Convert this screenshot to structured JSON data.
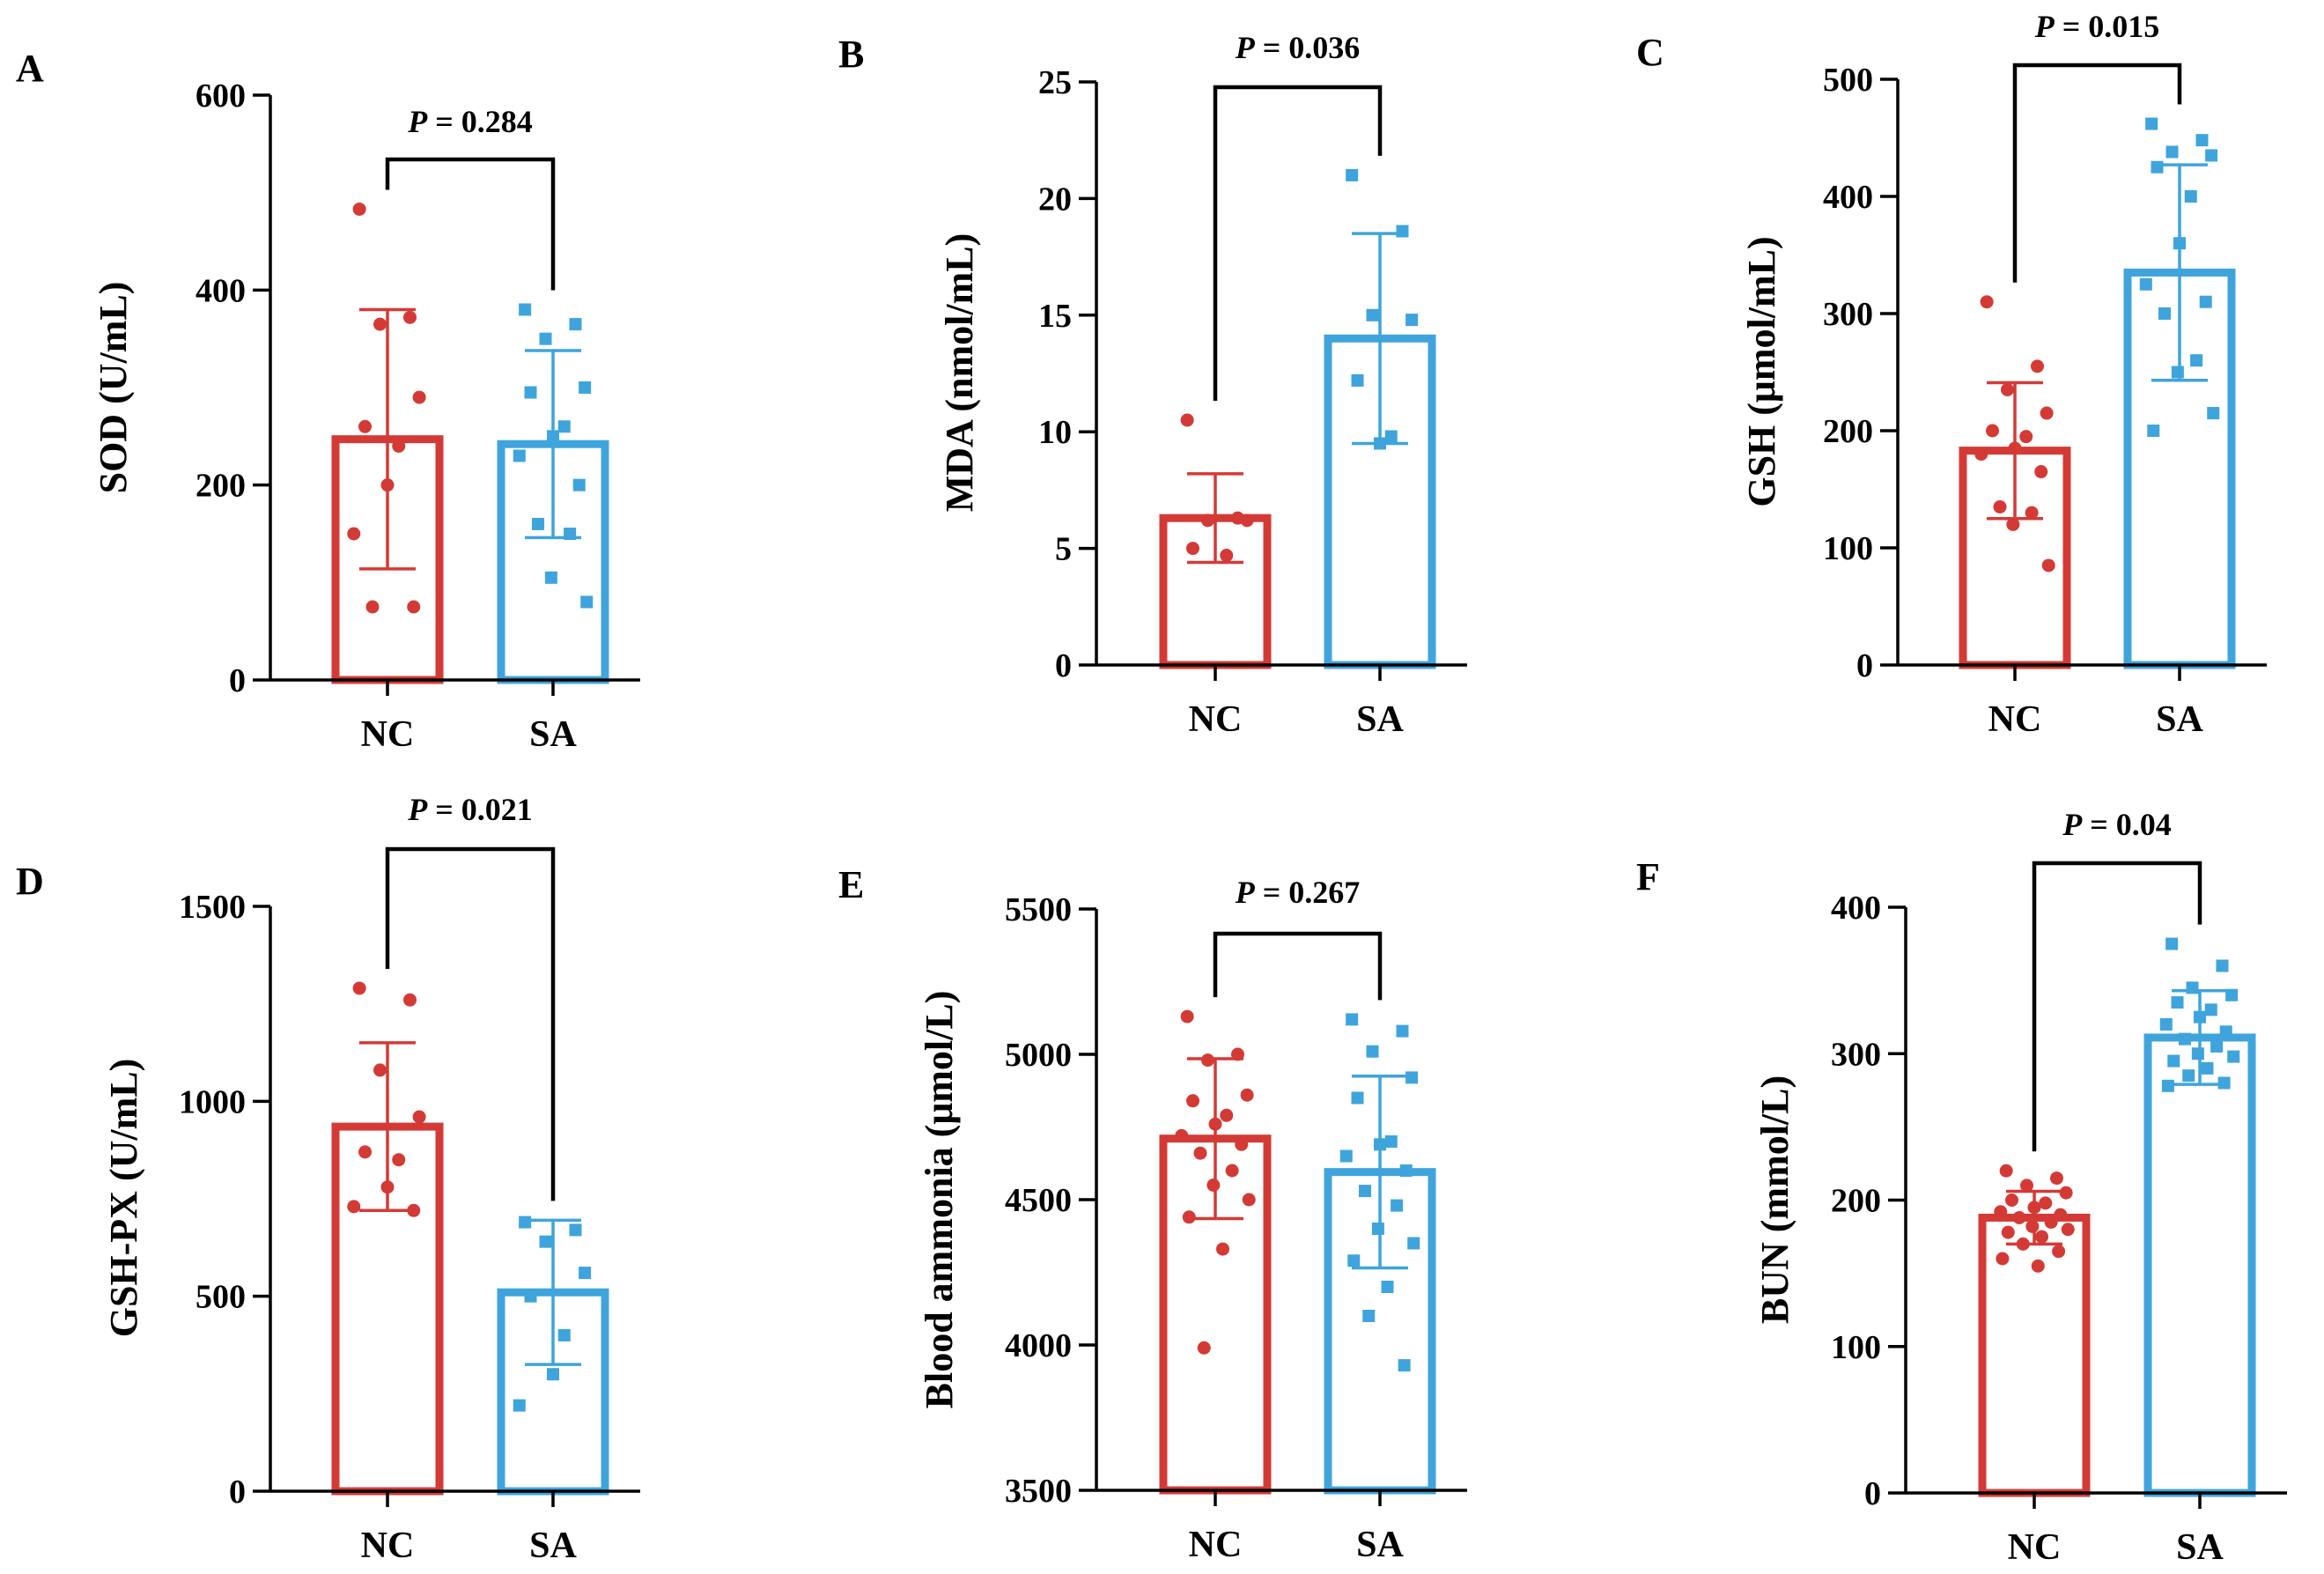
{
  "colors": {
    "NC": "#d43a35",
    "SA": "#3fa4dc"
  },
  "chart_data": [
    {
      "panel": "A",
      "type": "bar",
      "categories": [
        "NC",
        "SA"
      ],
      "ylabel": "SOD (U/mL)",
      "ylim": [
        0,
        600
      ],
      "yticks": [
        0,
        200,
        400,
        600
      ],
      "ytick_labels": [
        "0",
        "200",
        "400",
        "600"
      ],
      "p_label": "P",
      "p_value": " = 0.284",
      "series": [
        {
          "name": "NC",
          "mean": 247,
          "sd": 133,
          "points": [
            483,
            372,
            365,
            290,
            260,
            240,
            200,
            150,
            75,
            75
          ]
        },
        {
          "name": "SA",
          "mean": 242,
          "sd": 96,
          "points": [
            380,
            365,
            350,
            300,
            295,
            260,
            250,
            230,
            200,
            160,
            150,
            105,
            80
          ]
        }
      ]
    },
    {
      "panel": "B",
      "type": "bar",
      "categories": [
        "NC",
        "SA"
      ],
      "ylabel": "MDA (nmol/mL)",
      "ylim": [
        0,
        25
      ],
      "yticks": [
        0,
        5,
        10,
        15,
        20,
        25
      ],
      "ytick_labels": [
        "0",
        "5",
        "10",
        "15",
        "20",
        "25"
      ],
      "p_label": "P",
      "p_value": " = 0.036",
      "series": [
        {
          "name": "NC",
          "mean": 6.3,
          "sd": 1.9,
          "points": [
            10.5,
            6.3,
            6.2,
            6.2,
            5.0,
            4.7
          ]
        },
        {
          "name": "SA",
          "mean": 14.0,
          "sd": 4.5,
          "points": [
            21.0,
            18.6,
            15.0,
            14.8,
            12.2,
            9.8,
            9.5
          ]
        }
      ]
    },
    {
      "panel": "C",
      "type": "bar",
      "categories": [
        "NC",
        "SA"
      ],
      "ylabel": "GSH (μmol/mL)",
      "ylim": [
        0,
        500
      ],
      "yticks": [
        0,
        100,
        200,
        300,
        400,
        500
      ],
      "ytick_labels": [
        "0",
        "100",
        "200",
        "300",
        "400",
        "500"
      ],
      "p_label": "P",
      "p_value": " = 0.015",
      "series": [
        {
          "name": "NC",
          "mean": 183,
          "sd": 58,
          "points": [
            310,
            255,
            235,
            215,
            200,
            195,
            185,
            180,
            165,
            135,
            130,
            120,
            85
          ]
        },
        {
          "name": "SA",
          "mean": 335,
          "sd": 92,
          "points": [
            462,
            448,
            438,
            435,
            425,
            400,
            360,
            325,
            310,
            300,
            260,
            250,
            215,
            200
          ]
        }
      ]
    },
    {
      "panel": "D",
      "type": "bar",
      "categories": [
        "NC",
        "SA"
      ],
      "ylabel": "GSH-PX (U/mL)",
      "ylim": [
        0,
        1500
      ],
      "yticks": [
        0,
        500,
        1000,
        1500
      ],
      "ytick_labels": [
        "0",
        "500",
        "1000",
        "1500"
      ],
      "p_label": "P",
      "p_value": " = 0.021",
      "series": [
        {
          "name": "NC",
          "mean": 935,
          "sd": 215,
          "points": [
            1290,
            1260,
            1080,
            960,
            870,
            850,
            780,
            730,
            720
          ]
        },
        {
          "name": "SA",
          "mean": 510,
          "sd": 185,
          "points": [
            690,
            670,
            640,
            560,
            500,
            400,
            300,
            220
          ]
        }
      ]
    },
    {
      "panel": "E",
      "type": "bar",
      "categories": [
        "NC",
        "SA"
      ],
      "ylabel": "Blood ammonia (μmol/L)",
      "ylim": [
        3500,
        5500
      ],
      "yticks": [
        3500,
        4000,
        4500,
        5000,
        5500
      ],
      "ytick_labels": [
        "3500",
        "4000",
        "4500",
        "5000",
        "5500"
      ],
      "p_label": "P",
      "p_value": " = 0.267",
      "series": [
        {
          "name": "NC",
          "mean": 4710,
          "sd": 275,
          "points": [
            5130,
            5000,
            4980,
            4860,
            4840,
            4790,
            4760,
            4720,
            4690,
            4660,
            4600,
            4550,
            4500,
            4440,
            4330,
            3990
          ]
        },
        {
          "name": "SA",
          "mean": 4595,
          "sd": 330,
          "points": [
            5120,
            5080,
            5010,
            4920,
            4850,
            4700,
            4690,
            4650,
            4600,
            4530,
            4480,
            4400,
            4350,
            4290,
            4200,
            4100,
            3930
          ]
        }
      ]
    },
    {
      "panel": "F",
      "type": "bar",
      "categories": [
        "NC",
        "SA"
      ],
      "ylabel": "BUN (mmol/L)",
      "ylim": [
        0,
        400
      ],
      "yticks": [
        0,
        100,
        200,
        300,
        400
      ],
      "ytick_labels": [
        "0",
        "100",
        "200",
        "300",
        "400"
      ],
      "p_label": "P",
      "p_value": " = 0.04",
      "series": [
        {
          "name": "NC",
          "mean": 188,
          "sd": 18,
          "points": [
            220,
            215,
            210,
            205,
            200,
            198,
            195,
            192,
            190,
            188,
            185,
            182,
            180,
            178,
            175,
            170,
            165,
            160,
            155
          ]
        },
        {
          "name": "SA",
          "mean": 311,
          "sd": 32,
          "points": [
            375,
            360,
            345,
            340,
            335,
            330,
            325,
            320,
            315,
            310,
            305,
            300,
            298,
            295,
            290,
            285,
            280,
            278
          ]
        }
      ]
    }
  ]
}
